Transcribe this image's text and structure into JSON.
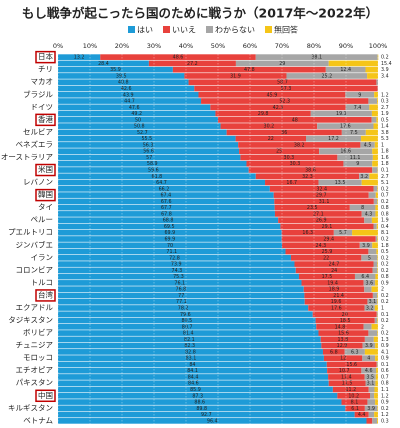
{
  "chart_data": {
    "type": "stacked_bar_horizontal",
    "title": "もし戦争が起こったら国のために戦うか（2017年～2022年）",
    "categories": [
      "日本",
      null,
      "チリ",
      null,
      "マカオ",
      null,
      "ブラジル",
      null,
      "ドイツ",
      null,
      "香港",
      null,
      "セルビア",
      null,
      "ベネズエラ",
      null,
      "オーストラリア",
      null,
      "米国",
      null,
      "レバノン",
      null,
      "韓国",
      null,
      "タイ",
      null,
      "ペルー",
      null,
      "プエルトリコ",
      null,
      "ジンバブエ",
      null,
      "イラン",
      null,
      "コロンビア",
      null,
      "トルコ",
      null,
      "台湾",
      null,
      "エクアドル",
      null,
      "タジキスタン",
      null,
      "ボリビア",
      null,
      "チュニジア",
      null,
      "モロッコ",
      null,
      "エチオピア",
      null,
      "パキスタン",
      null,
      "中国",
      null,
      "キルギスタン",
      null,
      "ベトナム"
    ],
    "series": [
      {
        "name": "はい",
        "color": "#1e9bd7",
        "values": [
          13.2,
          28.4,
          35.9,
          39.5,
          40.8,
          42.6,
          43.9,
          44.7,
          47.6,
          49.2,
          50.0,
          50.8,
          52.7,
          55.5,
          56.3,
          56.6,
          57.0,
          58.9,
          59.6,
          61.8,
          64.7,
          66.2,
          67.4,
          67.6,
          67.7,
          67.8,
          68.8,
          69.5,
          69.9,
          69.9,
          70.0,
          71.1,
          72.8,
          73.9,
          74.3,
          75.3,
          76.1,
          76.8,
          77.0,
          77.1,
          78.2,
          79.6,
          80.5,
          80.7,
          81.4,
          82.1,
          82.3,
          82.8,
          83.1,
          84.0,
          84.1,
          84.4,
          84.6,
          85.9,
          87.3,
          88.6,
          89.8,
          92.7,
          96.4
        ]
      },
      {
        "name": "いいえ",
        "color": "#e8413c",
        "values": [
          48.6,
          27.2,
          47.8,
          31.9,
          58.7,
          57.3,
          45.9,
          52.3,
          42.3,
          29.8,
          48.0,
          30.2,
          36.0,
          22.0,
          38.2,
          25.0,
          30.3,
          30.3,
          38.6,
          32.3,
          16.7,
          32.4,
          29.7,
          31.1,
          23.5,
          27.1,
          26.9,
          29.1,
          16.3,
          29.4,
          24.3,
          25.9,
          22.0,
          24.7,
          24.0,
          17.5,
          19.4,
          18.9,
          21.4,
          19.6,
          17.6,
          20.0,
          18.5,
          14.8,
          15.6,
          13.8,
          12.9,
          6.8,
          12.0,
          15.6,
          10.7,
          11.4,
          11.5,
          11.2,
          10.2,
          8.1,
          6.1,
          4.4,
          1.8
        ]
      },
      {
        "name": "わからない",
        "color": "#a6a6a6",
        "values": [
          38.1,
          29.0,
          12.4,
          25.2,
          0.5,
          0.1,
          9.0,
          2.7,
          7.4,
          19.1,
          1.5,
          17.6,
          7.5,
          17.2,
          4.5,
          16.6,
          11.1,
          9.0,
          1.7,
          3.2,
          13.5,
          1.2,
          2.2,
          1.1,
          8.0,
          4.3,
          2.4,
          1.0,
          5.7,
          0.5,
          3.9,
          2.5,
          5.0,
          1.2,
          1.5,
          6.4,
          3.6,
          2.3,
          1.4,
          3.1,
          3.2,
          0.3,
          0.8,
          2.5,
          2.8,
          2.8,
          3.9,
          6.3,
          4.0,
          0.3,
          4.6,
          3.5,
          3.1,
          1.8,
          1.3,
          2.4,
          3.9,
          1.7,
          1.5
        ]
      },
      {
        "name": "無回答",
        "color": "#f5c518",
        "values": [
          0.2,
          15.4,
          3.9,
          3.4,
          0.0,
          0.0,
          1.2,
          0.3,
          2.7,
          1.9,
          0.5,
          1.4,
          3.8,
          5.3,
          1.0,
          1.8,
          1.6,
          1.8,
          0.1,
          2.7,
          5.1,
          0.2,
          0.7,
          0.2,
          0.8,
          0.8,
          1.9,
          0.4,
          8.1,
          0.2,
          1.8,
          0.5,
          0.2,
          0.2,
          0.2,
          0.8,
          0.9,
          2.0,
          0.2,
          0.2,
          1.0,
          0.1,
          0.2,
          2.0,
          0.2,
          1.3,
          0.9,
          4.1,
          0.9,
          0.1,
          0.6,
          0.7,
          0.8,
          1.1,
          1.2,
          0.9,
          0.2,
          1.2,
          0.3
        ]
      }
    ],
    "xlim": [
      0,
      100
    ],
    "xticks": [
      {
        "value": 0,
        "label": "0%"
      },
      {
        "value": 10,
        "label": "10%"
      },
      {
        "value": 20,
        "label": "20%"
      },
      {
        "value": 30,
        "label": "30%"
      },
      {
        "value": 40,
        "label": "40%"
      },
      {
        "value": 50,
        "label": "50%"
      },
      {
        "value": 60,
        "label": "60%"
      },
      {
        "value": 70,
        "label": "70%"
      },
      {
        "value": 80,
        "label": "80%"
      },
      {
        "value": 90,
        "label": "90%"
      },
      {
        "value": 100,
        "label": "100%"
      }
    ],
    "grid": true,
    "legend": "top",
    "highlighted": [
      0,
      10,
      18,
      22,
      38,
      54
    ],
    "highlight_color": "#c00000"
  }
}
